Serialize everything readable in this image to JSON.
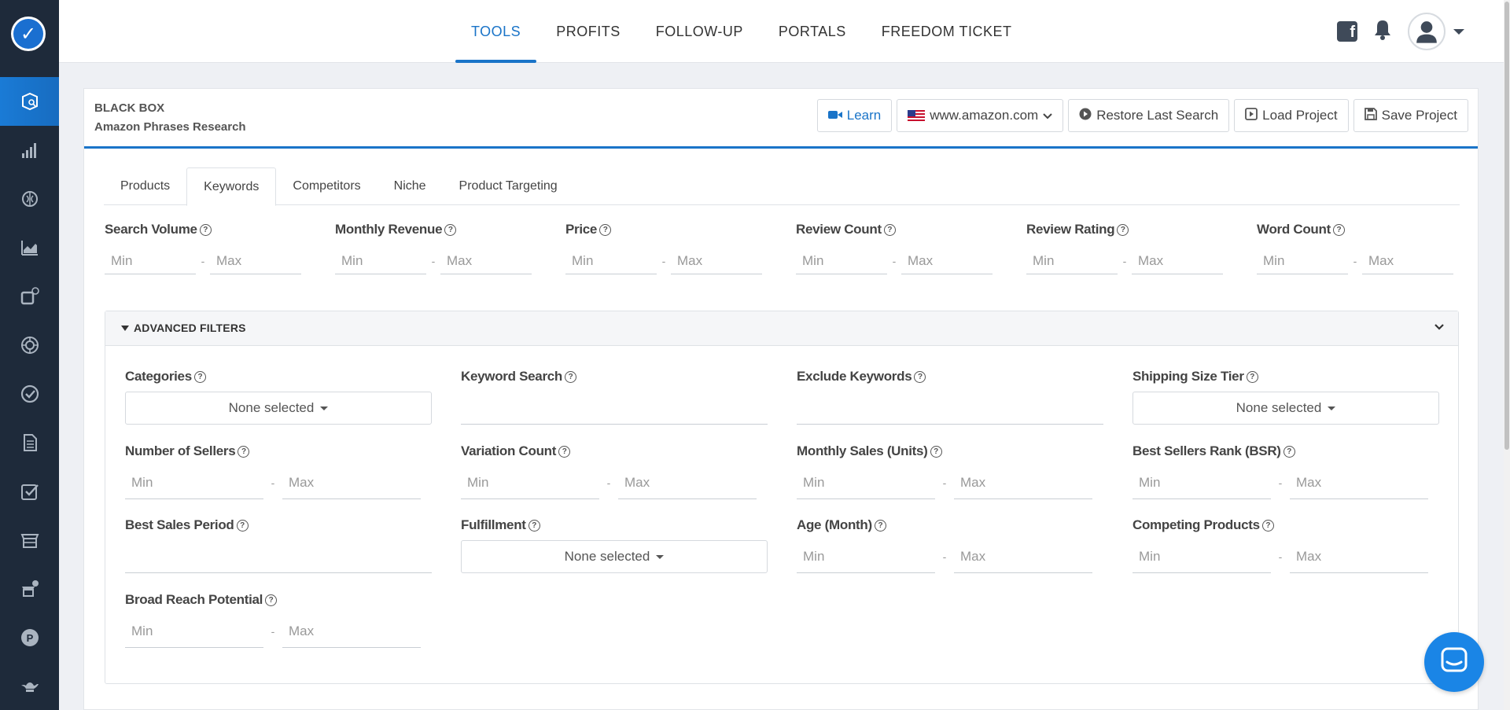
{
  "nav": {
    "items": [
      {
        "label": "TOOLS",
        "active": true
      },
      {
        "label": "PROFITS",
        "active": false
      },
      {
        "label": "FOLLOW-UP",
        "active": false
      },
      {
        "label": "PORTALS",
        "active": false
      },
      {
        "label": "FREEDOM TICKET",
        "active": false
      }
    ]
  },
  "sidebar": {
    "logo_icon": "checkmark-logo-icon",
    "items": [
      {
        "icon": "black-box-icon",
        "active": true
      },
      {
        "icon": "bar-chart-icon",
        "active": false
      },
      {
        "icon": "brain-icon",
        "active": false
      },
      {
        "icon": "area-chart-icon",
        "active": false
      },
      {
        "icon": "keyword-icon",
        "active": false
      },
      {
        "icon": "target-icon",
        "active": false
      },
      {
        "icon": "check-circle-icon",
        "active": false
      },
      {
        "icon": "document-icon",
        "active": false
      },
      {
        "icon": "checklist-icon",
        "active": false
      },
      {
        "icon": "store-icon",
        "active": false
      },
      {
        "icon": "store-alert-icon",
        "active": false
      },
      {
        "icon": "p-badge-icon",
        "active": false
      },
      {
        "icon": "genie-lamp-icon",
        "active": false
      }
    ]
  },
  "header": {
    "title": "BLACK BOX",
    "subtitle": "Amazon Phrases Research",
    "learn_label": "Learn",
    "marketplace": "www.amazon.com",
    "restore_label": "Restore Last Search",
    "load_label": "Load Project",
    "save_label": "Save Project"
  },
  "tabs": [
    {
      "label": "Products",
      "active": false
    },
    {
      "label": "Keywords",
      "active": true
    },
    {
      "label": "Competitors",
      "active": false
    },
    {
      "label": "Niche",
      "active": false
    },
    {
      "label": "Product Targeting",
      "active": false
    }
  ],
  "filters": [
    {
      "label": "Search Volume",
      "min": "Min",
      "max": "Max"
    },
    {
      "label": "Monthly Revenue",
      "min": "Min",
      "max": "Max"
    },
    {
      "label": "Price",
      "min": "Min",
      "max": "Max"
    },
    {
      "label": "Review Count",
      "min": "Min",
      "max": "Max"
    },
    {
      "label": "Review Rating",
      "min": "Min",
      "max": "Max"
    },
    {
      "label": "Word Count",
      "min": "Min",
      "max": "Max"
    }
  ],
  "advanced": {
    "title": "ADVANCED FILTERS",
    "fields": {
      "categories": {
        "label": "Categories",
        "value": "None selected"
      },
      "keyword_search": {
        "label": "Keyword Search"
      },
      "exclude_keywords": {
        "label": "Exclude Keywords"
      },
      "shipping_size_tier": {
        "label": "Shipping Size Tier",
        "value": "None selected"
      },
      "number_of_sellers": {
        "label": "Number of Sellers",
        "min": "Min",
        "max": "Max"
      },
      "variation_count": {
        "label": "Variation Count",
        "min": "Min",
        "max": "Max"
      },
      "monthly_sales": {
        "label": "Monthly Sales (Units)",
        "min": "Min",
        "max": "Max"
      },
      "bsr": {
        "label": "Best Sellers Rank (BSR)",
        "min": "Min",
        "max": "Max"
      },
      "best_sales_period": {
        "label": "Best Sales Period"
      },
      "fulfillment": {
        "label": "Fulfillment",
        "value": "None selected"
      },
      "age_month": {
        "label": "Age (Month)",
        "min": "Min",
        "max": "Max"
      },
      "competing_products": {
        "label": "Competing Products",
        "min": "Min",
        "max": "Max"
      },
      "broad_reach": {
        "label": "Broad Reach Potential",
        "min": "Min",
        "max": "Max"
      }
    }
  },
  "help_glyph": "?"
}
